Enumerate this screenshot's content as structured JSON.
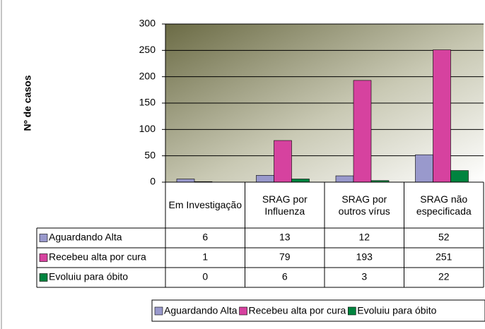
{
  "chart_data": {
    "type": "bar",
    "y_label": "Nº de casos",
    "categories": [
      "Em Investigação",
      "SRAG por Influenza",
      "SRAG por outros vírus",
      "SRAG não especificada"
    ],
    "series": [
      {
        "name": "Aguardando Alta",
        "color": "#9999cc",
        "values": [
          6,
          13,
          12,
          52
        ]
      },
      {
        "name": "Recebeu alta por cura",
        "color": "#d6429f",
        "values": [
          1,
          79,
          193,
          251
        ]
      },
      {
        "name": "Evoluiu para óbito",
        "color": "#00843f",
        "values": [
          0,
          6,
          3,
          22
        ]
      }
    ],
    "ylim": [
      0,
      300
    ],
    "yticks": [
      0,
      50,
      100,
      150,
      200,
      250,
      300
    ],
    "grid": true,
    "legend": "bottom"
  }
}
